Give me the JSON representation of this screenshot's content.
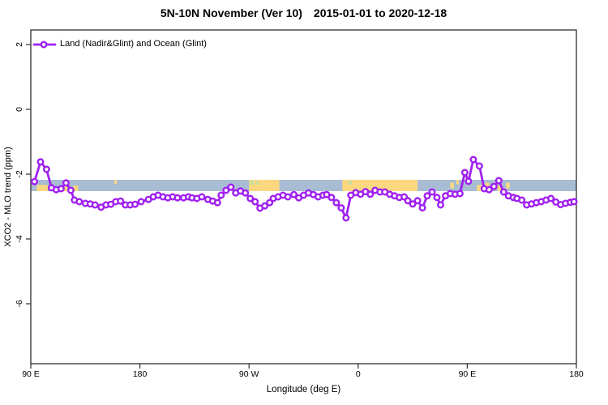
{
  "title": {
    "region_period": "5N-10N November (Ver 10)",
    "date_range": "2015-01-01 to 2020-12-18"
  },
  "chart_data": {
    "type": "line",
    "title": "5N-10N November (Ver 10)  2015-01-01 to 2020-12-18",
    "xlabel": "Longitude (deg E)",
    "ylabel": "XCO2 - MLO trend (ppm)",
    "grid": false,
    "background_color": "#FFFFFF",
    "legend": {
      "position": "top-left-inside",
      "entries": [
        {
          "label": "Land (Nadir&Glint) and Ocean (Glint)",
          "color": "#A020F0",
          "marker": "open-circle"
        }
      ]
    },
    "x_axis": {
      "label": "Longitude (deg E)",
      "domain_deg_east": [
        90,
        540
      ],
      "wraps_antimeridian": true,
      "ticks": [
        {
          "pos": 90,
          "label": "90 E"
        },
        {
          "pos": 180,
          "label": "180"
        },
        {
          "pos": 270,
          "label": "90 W"
        },
        {
          "pos": 360,
          "label": "0"
        },
        {
          "pos": 450,
          "label": "90 E"
        },
        {
          "pos": 540,
          "label": "180"
        }
      ]
    },
    "y_axis": {
      "label": "XCO2 - MLO trend (ppm)",
      "range": [
        -7.85,
        2.45
      ],
      "ticks": [
        {
          "pos": 2,
          "label": "2"
        },
        {
          "pos": 0,
          "label": "0"
        },
        {
          "pos": -2,
          "label": "-2"
        },
        {
          "pos": -4,
          "label": "-4"
        },
        {
          "pos": -6,
          "label": "-6"
        }
      ]
    },
    "surface_band": {
      "description": "ocean/land surface strip for 5N-10N latitude band",
      "value_top": -2.175,
      "value_bottom": -2.525,
      "ocean_color": "#A8BCD4",
      "land_color": "#FBD87F",
      "vegetation_color": "#C6DFA0",
      "land_segments": [
        {
          "from": 95,
          "to": 104,
          "frac": 0.55,
          "align": "bottom"
        },
        {
          "from": 114,
          "to": 120,
          "frac": 0.5,
          "align": "bottom"
        },
        {
          "from": 125,
          "to": 129,
          "frac": 0.5,
          "align": "bottom"
        },
        {
          "from": 159,
          "to": 161,
          "frac": 0.35,
          "align": "top"
        },
        {
          "from": 270,
          "to": 295,
          "frac": 1,
          "align": "full"
        },
        {
          "from": 347,
          "to": 409,
          "frac": 1,
          "align": "full"
        },
        {
          "from": 436,
          "to": 439,
          "frac": 0.5,
          "align": "mid"
        },
        {
          "from": 441,
          "to": 443,
          "frac": 0.4,
          "align": "top"
        },
        {
          "from": 458,
          "to": 462,
          "frac": 0.55,
          "align": "bottom"
        },
        {
          "from": 465,
          "to": 468,
          "frac": 0.5,
          "align": "mid"
        },
        {
          "from": 475,
          "to": 478,
          "frac": 0.5,
          "align": "bottom"
        },
        {
          "from": 482,
          "to": 485,
          "frac": 0.5,
          "align": "mid"
        }
      ],
      "vegetation_segments": [
        {
          "from": 271,
          "to": 274
        },
        {
          "from": 276,
          "to": 278
        },
        {
          "from": 352,
          "to": 355
        }
      ]
    },
    "series": [
      {
        "name": "Land (Nadir&Glint) and Ocean (Glint)",
        "color": "#A020F0",
        "marker_fill": "#FFFFFF",
        "points": [
          [
            93,
            -2.23
          ],
          [
            98,
            -1.62
          ],
          [
            103,
            -1.85
          ],
          [
            107,
            -2.42
          ],
          [
            111,
            -2.48
          ],
          [
            115,
            -2.45
          ],
          [
            119,
            -2.27
          ],
          [
            123,
            -2.5
          ],
          [
            126,
            -2.8
          ],
          [
            130,
            -2.85
          ],
          [
            135,
            -2.9
          ],
          [
            139,
            -2.92
          ],
          [
            143,
            -2.95
          ],
          [
            148,
            -3.02
          ],
          [
            152,
            -2.95
          ],
          [
            156,
            -2.93
          ],
          [
            160,
            -2.85
          ],
          [
            164,
            -2.83
          ],
          [
            168,
            -2.95
          ],
          [
            172,
            -2.95
          ],
          [
            176,
            -2.93
          ],
          [
            181,
            -2.85
          ],
          [
            187,
            -2.78
          ],
          [
            191,
            -2.7
          ],
          [
            195,
            -2.65
          ],
          [
            199,
            -2.7
          ],
          [
            203,
            -2.73
          ],
          [
            207,
            -2.7
          ],
          [
            211,
            -2.73
          ],
          [
            216,
            -2.73
          ],
          [
            220,
            -2.7
          ],
          [
            223,
            -2.73
          ],
          [
            227,
            -2.75
          ],
          [
            231,
            -2.7
          ],
          [
            236,
            -2.78
          ],
          [
            240,
            -2.83
          ],
          [
            244,
            -2.88
          ],
          [
            247,
            -2.65
          ],
          [
            251,
            -2.5
          ],
          [
            255,
            -2.4
          ],
          [
            259,
            -2.58
          ],
          [
            263,
            -2.52
          ],
          [
            267,
            -2.58
          ],
          [
            271,
            -2.75
          ],
          [
            275,
            -2.85
          ],
          [
            279,
            -3.05
          ],
          [
            283,
            -2.98
          ],
          [
            287,
            -2.88
          ],
          [
            290,
            -2.75
          ],
          [
            294,
            -2.7
          ],
          [
            298,
            -2.65
          ],
          [
            302,
            -2.7
          ],
          [
            307,
            -2.63
          ],
          [
            311,
            -2.73
          ],
          [
            315,
            -2.65
          ],
          [
            319,
            -2.58
          ],
          [
            323,
            -2.63
          ],
          [
            327,
            -2.7
          ],
          [
            331,
            -2.65
          ],
          [
            334,
            -2.63
          ],
          [
            338,
            -2.72
          ],
          [
            342,
            -2.88
          ],
          [
            346,
            -3.04
          ],
          [
            350,
            -3.35
          ],
          [
            354,
            -2.65
          ],
          [
            358,
            -2.57
          ],
          [
            362,
            -2.62
          ],
          [
            366,
            -2.54
          ],
          [
            370,
            -2.62
          ],
          [
            374,
            -2.5
          ],
          [
            378,
            -2.55
          ],
          [
            382,
            -2.55
          ],
          [
            386,
            -2.62
          ],
          [
            390,
            -2.67
          ],
          [
            394,
            -2.72
          ],
          [
            398,
            -2.7
          ],
          [
            401,
            -2.82
          ],
          [
            405,
            -2.92
          ],
          [
            409,
            -2.82
          ],
          [
            413,
            -3.04
          ],
          [
            417,
            -2.67
          ],
          [
            421,
            -2.55
          ],
          [
            425,
            -2.72
          ],
          [
            428,
            -2.95
          ],
          [
            432,
            -2.67
          ],
          [
            436,
            -2.6
          ],
          [
            440,
            -2.62
          ],
          [
            444,
            -2.6
          ],
          [
            448,
            -1.95
          ],
          [
            451,
            -2.22
          ],
          [
            455,
            -1.55
          ],
          [
            460,
            -1.75
          ],
          [
            464,
            -2.45
          ],
          [
            468,
            -2.48
          ],
          [
            472,
            -2.38
          ],
          [
            476,
            -2.2
          ],
          [
            480,
            -2.55
          ],
          [
            484,
            -2.67
          ],
          [
            488,
            -2.72
          ],
          [
            491,
            -2.75
          ],
          [
            495,
            -2.8
          ],
          [
            499,
            -2.95
          ],
          [
            503,
            -2.92
          ],
          [
            507,
            -2.88
          ],
          [
            511,
            -2.85
          ],
          [
            515,
            -2.8
          ],
          [
            519,
            -2.75
          ],
          [
            523,
            -2.86
          ],
          [
            527,
            -2.94
          ],
          [
            531,
            -2.9
          ],
          [
            535,
            -2.87
          ],
          [
            538,
            -2.85
          ]
        ]
      }
    ]
  }
}
